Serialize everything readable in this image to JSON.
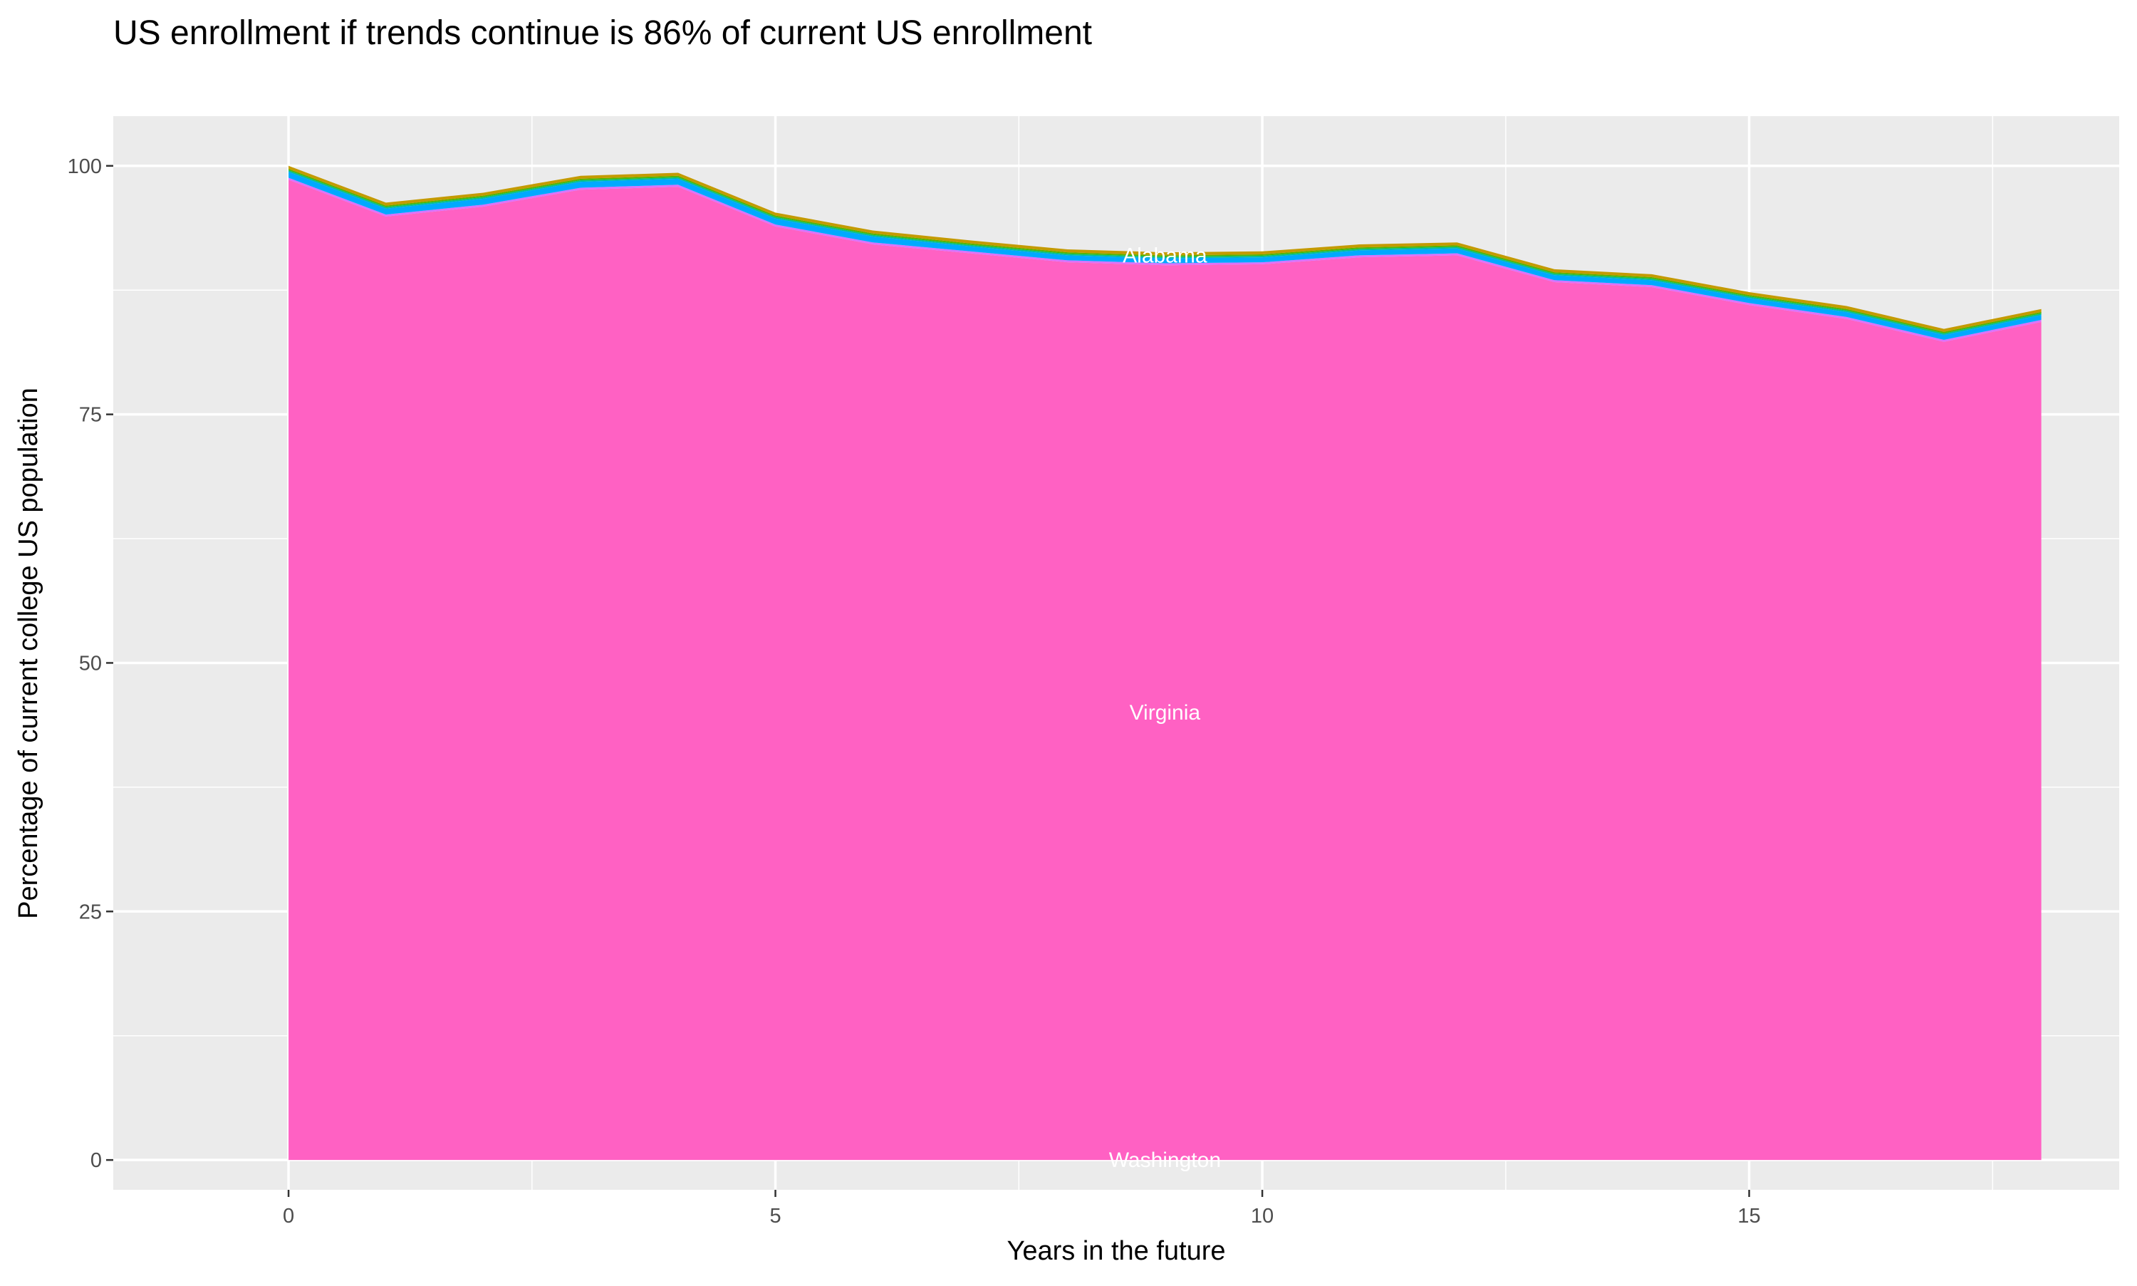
{
  "chart_data": {
    "type": "area",
    "stacked": true,
    "title": "US enrollment if trends continue is 86% of current US enrollment",
    "xlabel": "Years in the future",
    "ylabel": "Percentage of current college US population",
    "xlim": [
      -1.8,
      18.8
    ],
    "ylim": [
      -3,
      105
    ],
    "x_ticks": [
      0,
      5,
      10,
      15
    ],
    "y_ticks": [
      0,
      25,
      50,
      75,
      100
    ],
    "grid": true,
    "legend": "none",
    "x": [
      0,
      1,
      2,
      3,
      4,
      5,
      6,
      7,
      8,
      9,
      10,
      11,
      12,
      13,
      14,
      15,
      16,
      17,
      18
    ],
    "series": [
      {
        "color": "#FF61C3",
        "values": [
          98.6,
          94.9,
          95.9,
          97.6,
          97.9,
          93.9,
          92.1,
          91.2,
          90.3,
          90.0,
          90.1,
          90.8,
          91.0,
          88.3,
          87.8,
          86.0,
          84.6,
          82.3,
          84.3
        ]
      },
      {
        "color": "#DB72FB",
        "values": [
          0.2,
          0.2,
          0.2,
          0.2,
          0.2,
          0.2,
          0.2,
          0.2,
          0.2,
          0.2,
          0.2,
          0.2,
          0.2,
          0.2,
          0.2,
          0.2,
          0.2,
          0.2,
          0.2
        ]
      },
      {
        "color": "#00A9FF",
        "values": [
          0.6,
          0.6,
          0.6,
          0.6,
          0.6,
          0.6,
          0.6,
          0.5,
          0.5,
          0.5,
          0.5,
          0.5,
          0.5,
          0.5,
          0.5,
          0.5,
          0.5,
          0.5,
          0.5
        ]
      },
      {
        "color": "#00C094",
        "values": [
          0.15,
          0.15,
          0.15,
          0.15,
          0.15,
          0.15,
          0.15,
          0.15,
          0.15,
          0.15,
          0.15,
          0.15,
          0.15,
          0.15,
          0.15,
          0.15,
          0.15,
          0.15,
          0.15
        ]
      },
      {
        "color": "#53B400",
        "values": [
          0.15,
          0.15,
          0.15,
          0.15,
          0.15,
          0.15,
          0.15,
          0.15,
          0.15,
          0.15,
          0.15,
          0.15,
          0.15,
          0.15,
          0.15,
          0.15,
          0.15,
          0.15,
          0.15
        ]
      },
      {
        "color": "#C49A00",
        "values": [
          0.3,
          0.3,
          0.3,
          0.3,
          0.3,
          0.3,
          0.3,
          0.3,
          0.3,
          0.3,
          0.3,
          0.3,
          0.3,
          0.3,
          0.3,
          0.3,
          0.3,
          0.3,
          0.3
        ]
      }
    ],
    "annotations": [
      {
        "text": "Alabama",
        "x": 9,
        "y": 91
      },
      {
        "text": "Virginia",
        "x": 9,
        "y": 45
      },
      {
        "text": "Washington",
        "x": 9,
        "y": 0
      }
    ],
    "colors": {
      "panel": "#EBEBEB",
      "grid": "#FFFFFF",
      "label_text": "#FFFFFF",
      "tick_text": "#4D4D4D"
    }
  }
}
